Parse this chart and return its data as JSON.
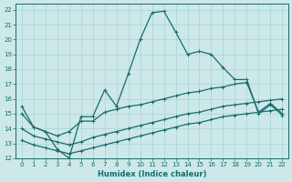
{
  "xlabel": "Humidex (Indice chaleur)",
  "bg_color": "#cce8e8",
  "grid_color": "#aad4d4",
  "line_color": "#1a6b6b",
  "xlim": [
    -0.5,
    22.5
  ],
  "ylim": [
    12,
    22.4
  ],
  "xticks": [
    0,
    1,
    2,
    3,
    4,
    5,
    6,
    7,
    8,
    9,
    10,
    11,
    12,
    13,
    14,
    15,
    16,
    17,
    18,
    19,
    20,
    21,
    22
  ],
  "yticks": [
    12,
    13,
    14,
    15,
    16,
    17,
    18,
    19,
    20,
    21,
    22
  ],
  "series1_x": [
    0,
    1,
    2,
    3,
    4,
    5,
    6,
    7,
    8,
    9,
    10,
    11,
    12,
    13,
    14,
    15,
    16,
    17,
    18,
    19,
    20,
    21,
    22
  ],
  "series1_y": [
    15.5,
    14.1,
    13.8,
    12.6,
    12.0,
    14.8,
    14.8,
    16.6,
    15.5,
    17.7,
    20.0,
    21.8,
    21.9,
    20.5,
    19.0,
    19.2,
    19.0,
    18.1,
    17.3,
    17.3,
    15.0,
    15.6,
    14.9
  ],
  "series2_x": [
    0,
    1,
    2,
    3,
    4,
    5,
    6,
    7,
    8,
    9,
    10,
    11,
    12,
    13,
    14,
    15,
    16,
    17,
    18,
    19,
    20,
    21,
    22
  ],
  "series2_y": [
    15.0,
    14.1,
    13.8,
    13.5,
    13.8,
    14.5,
    14.5,
    15.1,
    15.3,
    15.5,
    15.6,
    15.8,
    16.0,
    16.2,
    16.4,
    16.5,
    16.7,
    16.8,
    17.0,
    17.1,
    15.1,
    15.7,
    15.0
  ],
  "series3_x": [
    0,
    1,
    2,
    3,
    4,
    5,
    6,
    7,
    8,
    9,
    10,
    11,
    12,
    13,
    14,
    15,
    16,
    17,
    18,
    19,
    20,
    21,
    22
  ],
  "series3_y": [
    14.0,
    13.5,
    13.3,
    13.1,
    12.9,
    13.1,
    13.4,
    13.6,
    13.8,
    14.0,
    14.2,
    14.4,
    14.6,
    14.8,
    15.0,
    15.1,
    15.3,
    15.5,
    15.6,
    15.7,
    15.8,
    15.9,
    16.0
  ],
  "series4_x": [
    0,
    1,
    2,
    3,
    4,
    5,
    6,
    7,
    8,
    9,
    10,
    11,
    12,
    13,
    14,
    15,
    16,
    17,
    18,
    19,
    20,
    21,
    22
  ],
  "series4_y": [
    13.2,
    12.9,
    12.7,
    12.5,
    12.3,
    12.5,
    12.7,
    12.9,
    13.1,
    13.3,
    13.5,
    13.7,
    13.9,
    14.1,
    14.3,
    14.4,
    14.6,
    14.8,
    14.9,
    15.0,
    15.1,
    15.2,
    15.3
  ],
  "markersize": 2,
  "linewidth": 0.9
}
